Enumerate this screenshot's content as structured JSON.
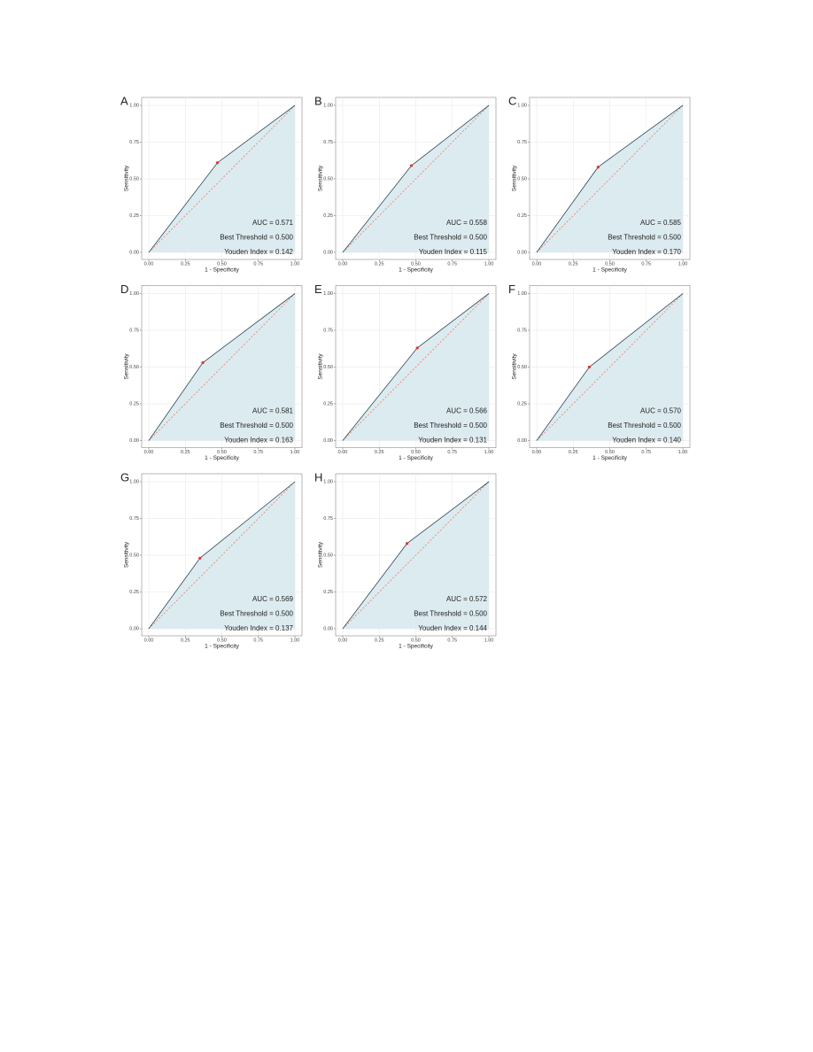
{
  "chart_data": [
    {
      "type": "line",
      "panel": "A",
      "xlabel": "1 - Specificity",
      "ylabel": "Sensitivity",
      "x": [
        0,
        0.47,
        1
      ],
      "values": [
        0,
        0.61,
        1
      ],
      "color": "#2e4a5a",
      "fill": "#dcebef",
      "point_color": "#e8322a",
      "reference_color": "#e07060",
      "annotations": [
        "AUC = 0.571",
        "Best Threshold = 0.500",
        "Youden Index = 0.142"
      ],
      "xlim": [
        0,
        1
      ],
      "ylim": [
        0,
        1
      ],
      "xticks": [
        {
          "value": 0,
          "label": "0.00"
        },
        {
          "value": 0.25,
          "label": "0.25"
        },
        {
          "value": 0.5,
          "label": "0.50"
        },
        {
          "value": 0.75,
          "label": "0.75"
        },
        {
          "value": 1,
          "label": "1.00"
        }
      ],
      "yticks": [
        {
          "value": 0,
          "label": "0.00"
        },
        {
          "value": 0.25,
          "label": "0.25"
        },
        {
          "value": 0.5,
          "label": "0.50"
        },
        {
          "value": 0.75,
          "label": "0.75"
        },
        {
          "value": 1,
          "label": "1.00"
        }
      ],
      "grid": true
    },
    {
      "type": "line",
      "panel": "B",
      "xlabel": "1 - Specificity",
      "ylabel": "Sensitivity",
      "x": [
        0,
        0.47,
        1
      ],
      "values": [
        0,
        0.59,
        1
      ],
      "color": "#2e4a5a",
      "fill": "#dcebef",
      "point_color": "#e8322a",
      "reference_color": "#e07060",
      "annotations": [
        "AUC = 0.558",
        "Best Threshold = 0.500",
        "Youden Index = 0.115"
      ],
      "xlim": [
        0,
        1
      ],
      "ylim": [
        0,
        1
      ],
      "xticks": [
        {
          "value": 0,
          "label": "0.00"
        },
        {
          "value": 0.25,
          "label": "0.25"
        },
        {
          "value": 0.5,
          "label": "0.50"
        },
        {
          "value": 0.75,
          "label": "0.75"
        },
        {
          "value": 1,
          "label": "1.00"
        }
      ],
      "yticks": [
        {
          "value": 0,
          "label": "0.00"
        },
        {
          "value": 0.25,
          "label": "0.25"
        },
        {
          "value": 0.5,
          "label": "0.50"
        },
        {
          "value": 0.75,
          "label": "0.75"
        },
        {
          "value": 1,
          "label": "1.00"
        }
      ],
      "grid": true
    },
    {
      "type": "line",
      "panel": "C",
      "xlabel": "1 - Specificity",
      "ylabel": "Sensitivity",
      "x": [
        0,
        0.42,
        1
      ],
      "values": [
        0,
        0.58,
        1
      ],
      "color": "#2e4a5a",
      "fill": "#dcebef",
      "point_color": "#e8322a",
      "reference_color": "#e07060",
      "annotations": [
        "AUC = 0.585",
        "Best Threshold = 0.500",
        "Youden Index = 0.170"
      ],
      "xlim": [
        0,
        1
      ],
      "ylim": [
        0,
        1
      ],
      "xticks": [
        {
          "value": 0,
          "label": "0.00"
        },
        {
          "value": 0.25,
          "label": "0.25"
        },
        {
          "value": 0.5,
          "label": "0.50"
        },
        {
          "value": 0.75,
          "label": "0.75"
        },
        {
          "value": 1,
          "label": "1.00"
        }
      ],
      "yticks": [
        {
          "value": 0,
          "label": "0.00"
        },
        {
          "value": 0.25,
          "label": "0.25"
        },
        {
          "value": 0.5,
          "label": "0.50"
        },
        {
          "value": 0.75,
          "label": "0.75"
        },
        {
          "value": 1,
          "label": "1.00"
        }
      ],
      "grid": true
    },
    {
      "type": "line",
      "panel": "D",
      "xlabel": "1 - Specificity",
      "ylabel": "Sensitivity",
      "x": [
        0,
        0.37,
        1
      ],
      "values": [
        0,
        0.53,
        1
      ],
      "color": "#2e4a5a",
      "fill": "#dcebef",
      "point_color": "#e8322a",
      "reference_color": "#e07060",
      "annotations": [
        "AUC = 0.581",
        "Best Threshold = 0.500",
        "Youden Index = 0.163"
      ],
      "xlim": [
        0,
        1
      ],
      "ylim": [
        0,
        1
      ],
      "xticks": [
        {
          "value": 0,
          "label": "0.00"
        },
        {
          "value": 0.25,
          "label": "0.25"
        },
        {
          "value": 0.5,
          "label": "0.50"
        },
        {
          "value": 0.75,
          "label": "0.75"
        },
        {
          "value": 1,
          "label": "1.00"
        }
      ],
      "yticks": [
        {
          "value": 0,
          "label": "0.00"
        },
        {
          "value": 0.25,
          "label": "0.25"
        },
        {
          "value": 0.5,
          "label": "0.50"
        },
        {
          "value": 0.75,
          "label": "0.75"
        },
        {
          "value": 1,
          "label": "1.00"
        }
      ],
      "grid": true
    },
    {
      "type": "line",
      "panel": "E",
      "xlabel": "1 - Specificity",
      "ylabel": "Sensitivity",
      "x": [
        0,
        0.51,
        1
      ],
      "values": [
        0,
        0.63,
        1
      ],
      "color": "#2e4a5a",
      "fill": "#dcebef",
      "point_color": "#e8322a",
      "reference_color": "#e07060",
      "annotations": [
        "AUC = 0.566",
        "Best Threshold = 0.500",
        "Youden Index = 0.131"
      ],
      "xlim": [
        0,
        1
      ],
      "ylim": [
        0,
        1
      ],
      "xticks": [
        {
          "value": 0,
          "label": "0.00"
        },
        {
          "value": 0.25,
          "label": "0.25"
        },
        {
          "value": 0.5,
          "label": "0.50"
        },
        {
          "value": 0.75,
          "label": "0.75"
        },
        {
          "value": 1,
          "label": "1.00"
        }
      ],
      "yticks": [
        {
          "value": 0,
          "label": "0.00"
        },
        {
          "value": 0.25,
          "label": "0.25"
        },
        {
          "value": 0.5,
          "label": "0.50"
        },
        {
          "value": 0.75,
          "label": "0.75"
        },
        {
          "value": 1,
          "label": "1.00"
        }
      ],
      "grid": true
    },
    {
      "type": "line",
      "panel": "F",
      "xlabel": "1 - Specificity",
      "ylabel": "Sensitivity",
      "x": [
        0,
        0.36,
        1
      ],
      "values": [
        0,
        0.5,
        1
      ],
      "color": "#2e4a5a",
      "fill": "#dcebef",
      "point_color": "#e8322a",
      "reference_color": "#e07060",
      "annotations": [
        "AUC = 0.570",
        "Best Threshold = 0.500",
        "Youden Index = 0.140"
      ],
      "xlim": [
        0,
        1
      ],
      "ylim": [
        0,
        1
      ],
      "xticks": [
        {
          "value": 0,
          "label": "0.00"
        },
        {
          "value": 0.25,
          "label": "0.25"
        },
        {
          "value": 0.5,
          "label": "0.50"
        },
        {
          "value": 0.75,
          "label": "0.75"
        },
        {
          "value": 1,
          "label": "1.00"
        }
      ],
      "yticks": [
        {
          "value": 0,
          "label": "0.00"
        },
        {
          "value": 0.25,
          "label": "0.25"
        },
        {
          "value": 0.5,
          "label": "0.50"
        },
        {
          "value": 0.75,
          "label": "0.75"
        },
        {
          "value": 1,
          "label": "1.00"
        }
      ],
      "grid": true
    },
    {
      "type": "line",
      "panel": "G",
      "xlabel": "1 - Specificity",
      "ylabel": "Sensitivity",
      "x": [
        0,
        0.35,
        1
      ],
      "values": [
        0,
        0.48,
        1
      ],
      "color": "#2e4a5a",
      "fill": "#dcebef",
      "point_color": "#e8322a",
      "reference_color": "#e07060",
      "annotations": [
        "AUC = 0.569",
        "Best Threshold = 0.500",
        "Youden Index = 0.137"
      ],
      "xlim": [
        0,
        1
      ],
      "ylim": [
        0,
        1
      ],
      "xticks": [
        {
          "value": 0,
          "label": "0.00"
        },
        {
          "value": 0.25,
          "label": "0.25"
        },
        {
          "value": 0.5,
          "label": "0.50"
        },
        {
          "value": 0.75,
          "label": "0.75"
        },
        {
          "value": 1,
          "label": "1.00"
        }
      ],
      "yticks": [
        {
          "value": 0,
          "label": "0.00"
        },
        {
          "value": 0.25,
          "label": "0.25"
        },
        {
          "value": 0.5,
          "label": "0.50"
        },
        {
          "value": 0.75,
          "label": "0.75"
        },
        {
          "value": 1,
          "label": "1.00"
        }
      ],
      "grid": true
    },
    {
      "type": "line",
      "panel": "H",
      "xlabel": "1 - Specificity",
      "ylabel": "Sensitivity",
      "x": [
        0,
        0.44,
        1
      ],
      "values": [
        0,
        0.58,
        1
      ],
      "color": "#2e4a5a",
      "fill": "#dcebef",
      "point_color": "#e8322a",
      "reference_color": "#e07060",
      "annotations": [
        "AUC = 0.572",
        "Best Threshold = 0.500",
        "Youden Index = 0.144"
      ],
      "xlim": [
        0,
        1
      ],
      "ylim": [
        0,
        1
      ],
      "xticks": [
        {
          "value": 0,
          "label": "0.00"
        },
        {
          "value": 0.25,
          "label": "0.25"
        },
        {
          "value": 0.5,
          "label": "0.50"
        },
        {
          "value": 0.75,
          "label": "0.75"
        },
        {
          "value": 1,
          "label": "1.00"
        }
      ],
      "yticks": [
        {
          "value": 0,
          "label": "0.00"
        },
        {
          "value": 0.25,
          "label": "0.25"
        },
        {
          "value": 0.5,
          "label": "0.50"
        },
        {
          "value": 0.75,
          "label": "0.75"
        },
        {
          "value": 1,
          "label": "1.00"
        }
      ],
      "grid": true
    }
  ]
}
